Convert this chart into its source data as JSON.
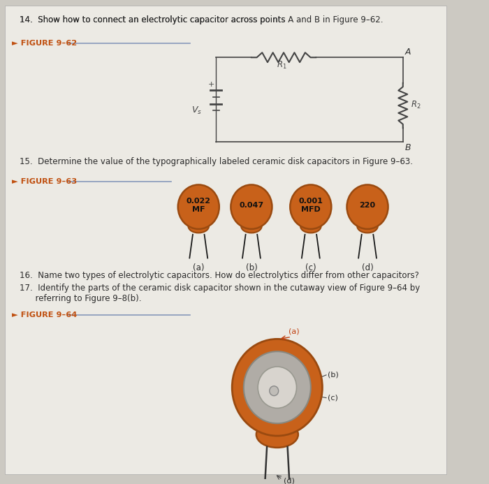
{
  "bg_color": "#ccc9c2",
  "page_bg": "#eceae4",
  "text_color": "#2a2a2a",
  "orange_cap": "#c8611a",
  "orange_dark": "#9a4a10",
  "title14": "14.  Show how to connect an electrolytic capacitor across points Â AÂ  and Â BÂ  in Figure 9–62.",
  "fig62_label": "► FIGURE 9–62",
  "fig63_label": "► FIGURE 9–63",
  "fig64_label": "► FIGURE 9–64",
  "title15": "15.  Determine the value of the typographically labeled ceramic disk capacitors in Figure 9–63.",
  "title16": "16.  Name two types of electrolytic capacitors. How do electrolytics differ from other capacitors?",
  "title17a": "17.  Identify the parts of the ceramic disk capacitor shown in the cutaway view of Figure 9–64 by",
  "title17b": "      referring to Figure 9–8(b).",
  "cap_labels": [
    "0.022\nMF",
    "0.047",
    "0.001\nMFD",
    "220"
  ],
  "cap_sub": [
    "(a)",
    "(b)",
    "(c)",
    "(d)"
  ]
}
